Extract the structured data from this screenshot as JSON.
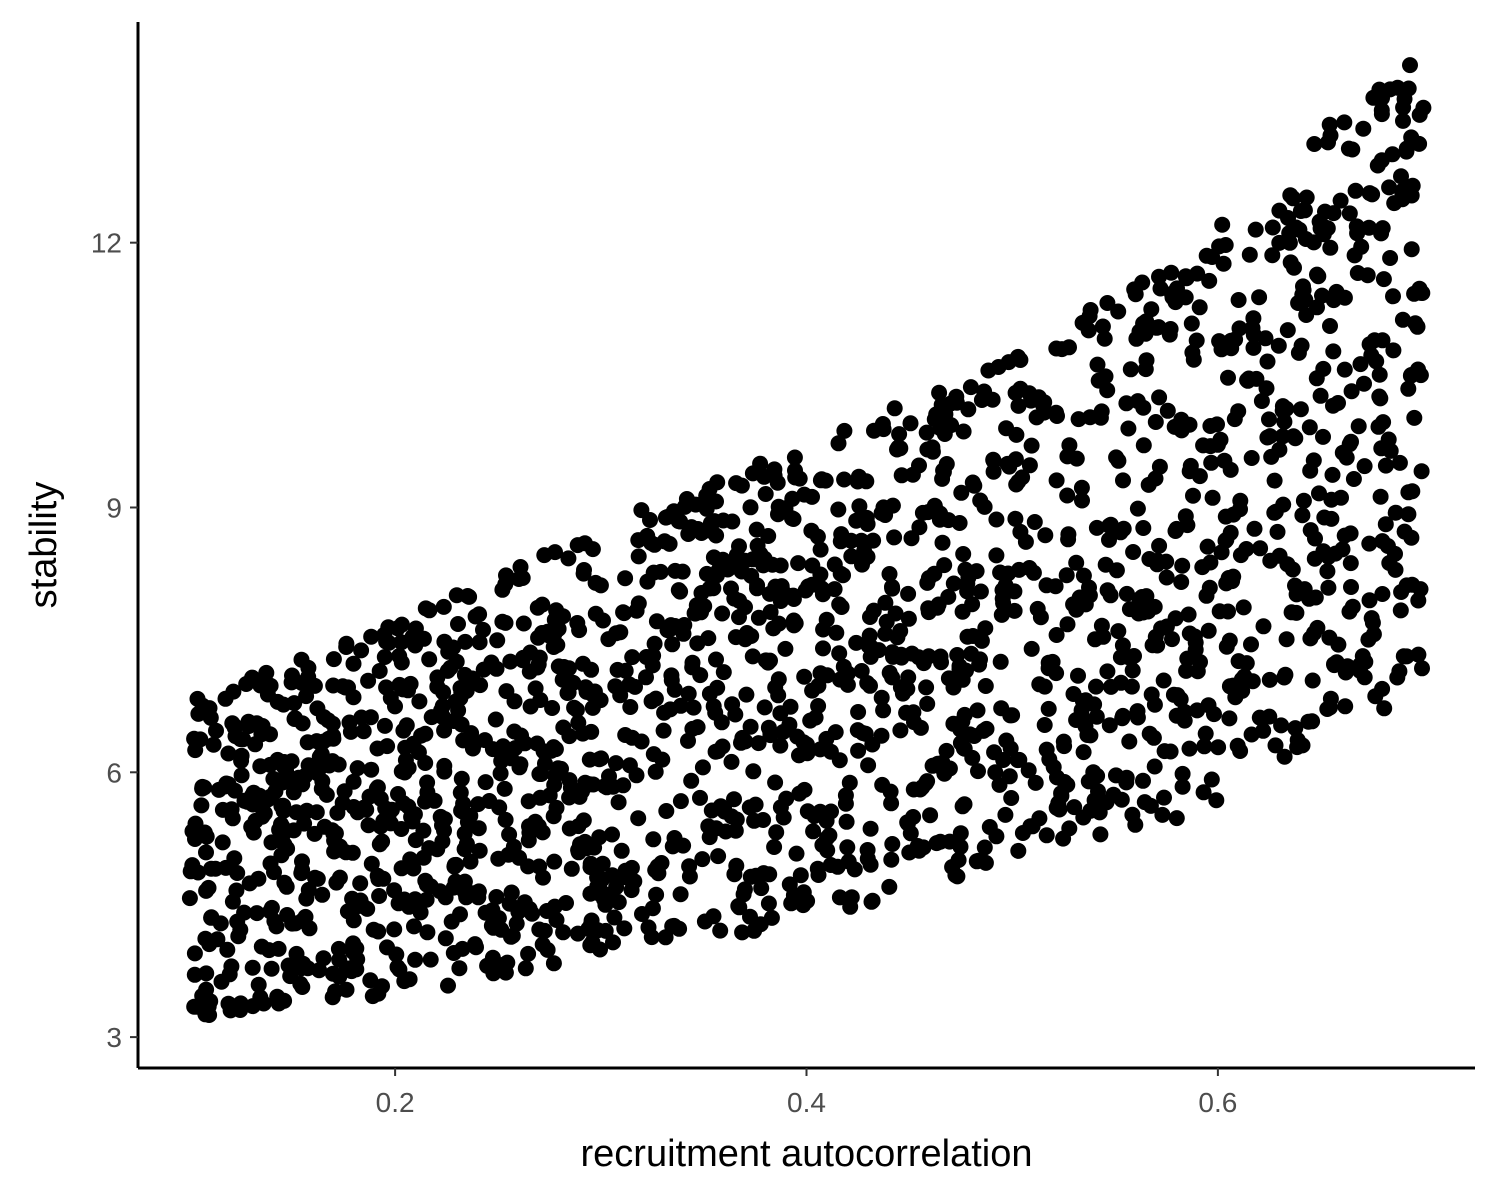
{
  "colors": {
    "background": "#ffffff",
    "axis": "#000000",
    "point": "#000000",
    "tick_text": "#4d4d4d"
  },
  "chart_data": {
    "type": "scatter",
    "title": "",
    "xlabel": "recruitment autocorrelation",
    "ylabel": "stability",
    "xlim": [
      0.075,
      0.725
    ],
    "ylim": [
      2.65,
      14.5
    ],
    "x_ticks": [
      0.2,
      0.4,
      0.6
    ],
    "x_tick_labels": [
      "0.2",
      "0.4",
      "0.6"
    ],
    "y_ticks": [
      3,
      6,
      9,
      12
    ],
    "y_tick_labels": [
      "3",
      "6",
      "9",
      "12"
    ],
    "grid": false,
    "legend": "none",
    "approx_point_count": 2000,
    "point_generation": {
      "description": "Points are sampled within an envelope region in data units",
      "x_range": [
        0.1,
        0.7
      ],
      "lower_bound": [
        [
          0.1,
          3.2
        ],
        [
          0.2,
          3.45
        ],
        [
          0.3,
          3.9
        ],
        [
          0.4,
          4.3
        ],
        [
          0.5,
          5.0
        ],
        [
          0.6,
          5.6
        ],
        [
          0.7,
          6.9
        ]
      ],
      "upper_bound": [
        [
          0.1,
          6.8
        ],
        [
          0.2,
          7.7
        ],
        [
          0.3,
          8.8
        ],
        [
          0.4,
          9.7
        ],
        [
          0.5,
          10.7
        ],
        [
          0.6,
          12.2
        ],
        [
          0.7,
          14.3
        ]
      ],
      "seed": 20240517
    }
  }
}
